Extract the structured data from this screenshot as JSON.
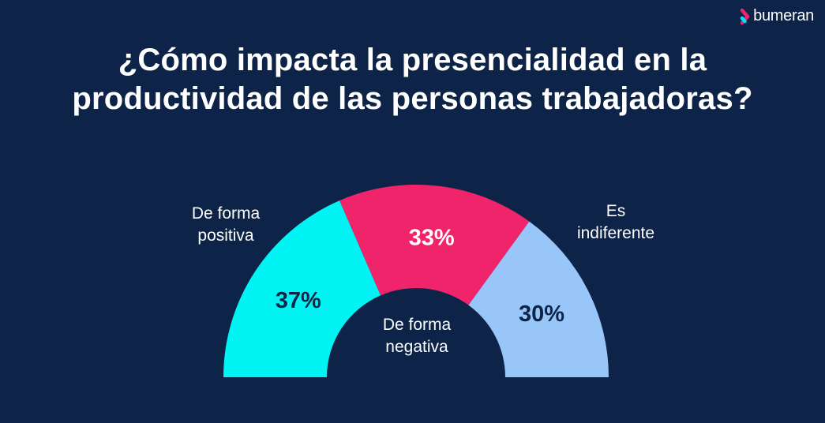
{
  "chart_data": {
    "type": "pie",
    "variant": "half-donut",
    "title": "¿Cómo impacta la presencialidad en la productividad de las personas trabajadoras?",
    "categories": [
      "De forma positiva",
      "De forma negativa",
      "Es indiferente"
    ],
    "values": [
      37,
      33,
      30
    ],
    "value_labels": [
      "37%",
      "33%",
      "30%"
    ],
    "colors": [
      "#00f4f4",
      "#f0246a",
      "#99c6f8"
    ],
    "label_colors": [
      "#0d2347",
      "#ffffff",
      "#0d2347"
    ],
    "category_lines": [
      [
        "De forma",
        "positiva"
      ],
      [
        "De forma",
        "negativa"
      ],
      [
        "Es",
        "indiferente"
      ]
    ]
  },
  "brand": {
    "name": "bumeran",
    "accent": "#f0246a",
    "accent2": "#00e0ff"
  },
  "colors": {
    "background": "#0d2347"
  }
}
